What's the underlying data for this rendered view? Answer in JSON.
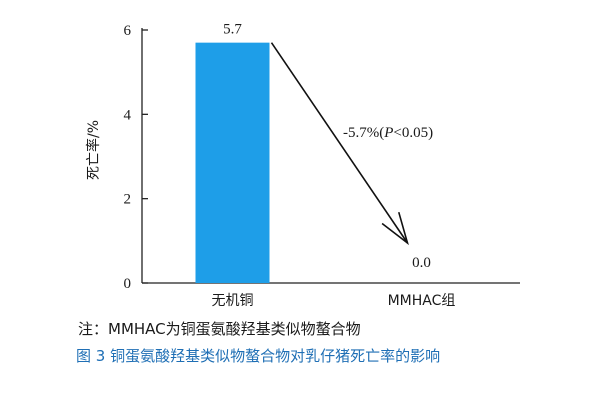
{
  "chart_data": {
    "type": "bar",
    "categories": [
      "无机铜",
      "MMHAC组"
    ],
    "values": [
      5.7,
      0.0
    ],
    "data_labels": [
      "5.7",
      "0.0"
    ],
    "ylabel": "死亡率/%",
    "ylim": [
      0,
      6
    ],
    "yticks": [
      0,
      2,
      4,
      6
    ],
    "bar_color": "#1e9ee8",
    "grid": false,
    "annotation": {
      "text_prefix": "-5.7%(",
      "text_italic": "P",
      "text_suffix": "<0.05)",
      "arrow_from": "无机铜",
      "arrow_to": "MMHAC组"
    }
  },
  "note": "注：MMHAC为铜蛋氨酸羟基类似物螯合物",
  "caption": "图 3  铜蛋氨酸羟基类似物螯合物对乳仔猪死亡率的影响",
  "caption_color": "#1f6fb5"
}
